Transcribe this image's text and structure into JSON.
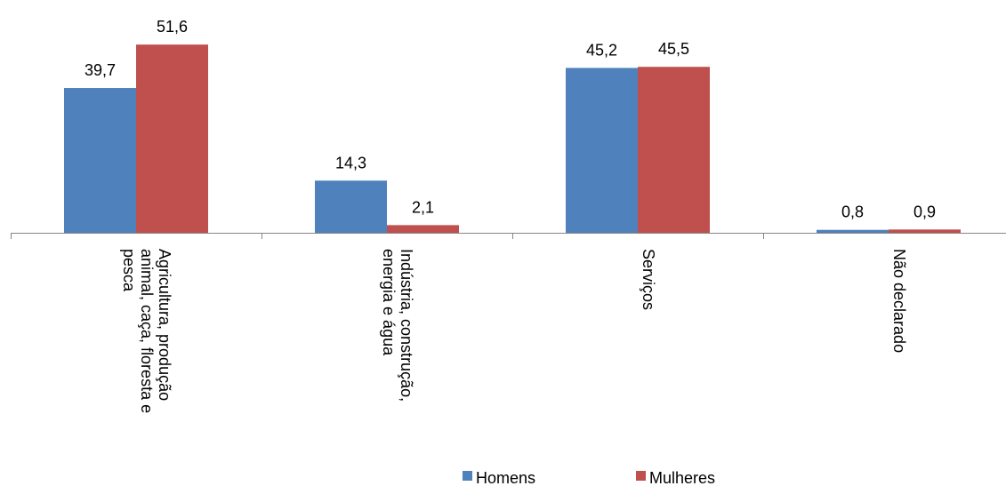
{
  "chart_data": {
    "type": "bar",
    "title": "",
    "xlabel": "",
    "ylabel": "",
    "ylim": [
      0,
      60
    ],
    "grid": false,
    "legend_position": "bottom",
    "categories": [
      [
        "Agricultura, produção",
        "animal, caça, floresta e",
        "pesca"
      ],
      [
        "Indústria, construção,",
        "energia e água"
      ],
      [
        "Serviços"
      ],
      [
        "Não declarado"
      ]
    ],
    "series": [
      {
        "name": "Homens",
        "color": "#4F81BD",
        "values": [
          39.7,
          14.3,
          45.2,
          0.8
        ],
        "labels": [
          "39,7",
          "14,3",
          "45,2",
          "0,8"
        ]
      },
      {
        "name": "Mulheres",
        "color": "#C0504D",
        "values": [
          51.6,
          2.1,
          45.5,
          0.9
        ],
        "labels": [
          "51,6",
          "2,1",
          "45,5",
          "0,9"
        ]
      }
    ]
  }
}
